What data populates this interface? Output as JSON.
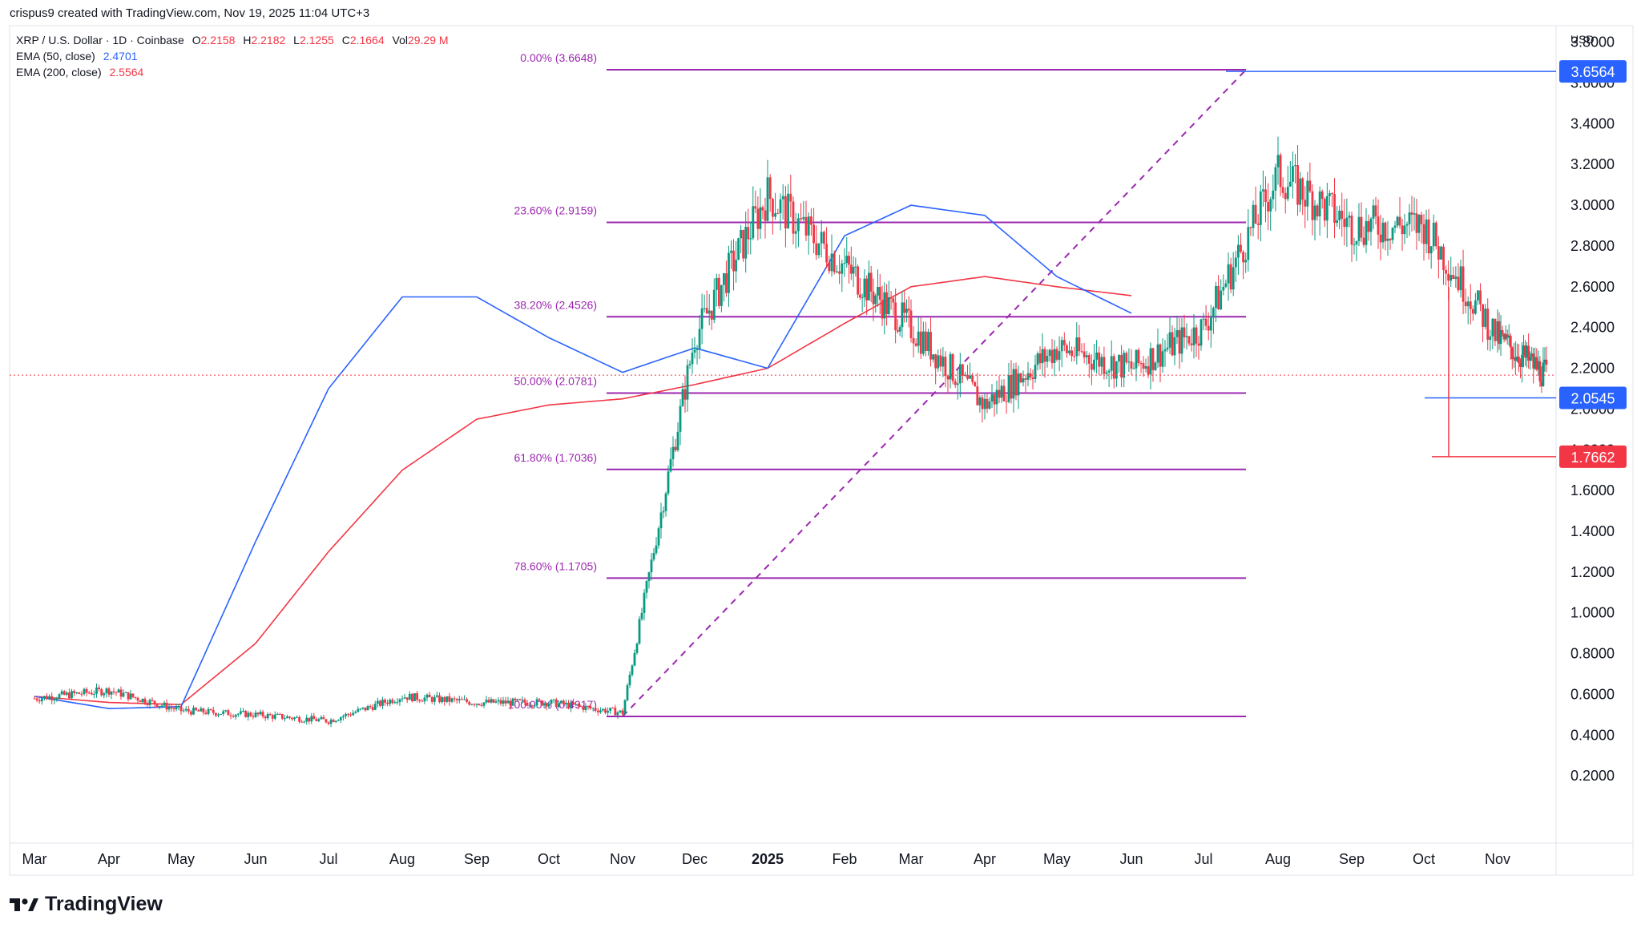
{
  "header": {
    "attribution": "crispus9 created with TradingView.com, Nov 19, 2025 11:04 UTC+3"
  },
  "legend": {
    "symbol": "XRP / U.S. Dollar · 1D · Coinbase",
    "ohlc": {
      "o_label": "O",
      "o": "2.2158",
      "h_label": "H",
      "h": "2.2182",
      "l_label": "L",
      "l": "2.1255",
      "c_label": "C",
      "c": "2.1664",
      "vol_label": "Vol",
      "vol": "29.29 M"
    },
    "ema50_label": "EMA (50, close)",
    "ema50_value": "2.4701",
    "ema200_label": "EMA (200, close)",
    "ema200_value": "2.5564"
  },
  "currency": "USD",
  "footer": {
    "brand": "TradingView"
  },
  "colors": {
    "up": "#089981",
    "down": "#f23645",
    "ema50": "#2962ff",
    "ema200": "#f23645",
    "fib": "#9c27b0",
    "tag_blue": "#2962ff",
    "tag_red": "#f23645"
  },
  "chart_data": {
    "type": "candlestick",
    "symbol": "XRP / U.S. Dollar",
    "interval": "1D",
    "exchange": "Coinbase",
    "ylim": [
      0.0,
      3.95
    ],
    "y_ticks": [
      "0.2000",
      "0.4000",
      "0.6000",
      "0.8000",
      "1.0000",
      "1.2000",
      "1.4000",
      "1.6000",
      "1.8000",
      "2.0000",
      "2.2000",
      "2.4000",
      "2.6000",
      "2.8000",
      "3.0000",
      "3.2000",
      "3.4000",
      "3.6000",
      "3.8000"
    ],
    "x_ticks": [
      "Mar",
      "Apr",
      "May",
      "Jun",
      "Jul",
      "Aug",
      "Sep",
      "Oct",
      "Nov",
      "Dec",
      "2025",
      "Feb",
      "Mar",
      "Apr",
      "May",
      "Jun",
      "Jul",
      "Aug",
      "Sep",
      "Oct",
      "Nov"
    ],
    "price_path": [
      [
        "Mar",
        0.58
      ],
      [
        "Apr",
        0.62
      ],
      [
        "May",
        0.52
      ],
      [
        "Jun",
        0.5
      ],
      [
        "Jul",
        0.47
      ],
      [
        "Aug",
        0.59
      ],
      [
        "Sep",
        0.56
      ],
      [
        "Oct",
        0.56
      ],
      [
        "Nov",
        0.51
      ],
      [
        "Dec",
        2.35
      ],
      [
        "2025",
        3.05
      ],
      [
        "Feb",
        2.7
      ],
      [
        "Mar",
        2.4
      ],
      [
        "Apr",
        2.02
      ],
      [
        "May",
        2.3
      ],
      [
        "Jun",
        2.2
      ],
      [
        "Jul",
        2.4
      ],
      [
        "Aug",
        3.15
      ],
      [
        "Sep",
        2.9
      ],
      [
        "Oct",
        2.9
      ],
      [
        "Nov",
        2.35
      ],
      [
        "Nov-19",
        2.1664
      ]
    ],
    "ema50_path": [
      [
        "Mar",
        0.59
      ],
      [
        "Jul",
        0.53
      ],
      [
        "Nov",
        0.54
      ],
      [
        "Dec",
        1.35
      ],
      [
        "2025",
        2.1
      ],
      [
        "Feb",
        2.55
      ],
      [
        "Mar",
        2.55
      ],
      [
        "Apr",
        2.35
      ],
      [
        "May",
        2.18
      ],
      [
        "Jun",
        2.3
      ],
      [
        "Jul",
        2.2
      ],
      [
        "Aug",
        2.85
      ],
      [
        "Sep",
        3.0
      ],
      [
        "Oct",
        2.95
      ],
      [
        "Nov",
        2.65
      ],
      [
        "Nov-19",
        2.4701
      ]
    ],
    "ema200_path": [
      [
        "Mar",
        0.59
      ],
      [
        "Jul",
        0.56
      ],
      [
        "Nov",
        0.55
      ],
      [
        "Dec",
        0.85
      ],
      [
        "2025",
        1.3
      ],
      [
        "Feb",
        1.7
      ],
      [
        "Mar",
        1.95
      ],
      [
        "Apr",
        2.02
      ],
      [
        "May",
        2.05
      ],
      [
        "Jun",
        2.12
      ],
      [
        "Jul",
        2.2
      ],
      [
        "Aug",
        2.42
      ],
      [
        "Sep",
        2.6
      ],
      [
        "Oct",
        2.65
      ],
      [
        "Nov",
        2.6
      ],
      [
        "Nov-19",
        2.5564
      ]
    ],
    "fibonacci": [
      {
        "label": "0.00% (3.6648)",
        "value": 3.6648
      },
      {
        "label": "23.60% (2.9159)",
        "value": 2.9159
      },
      {
        "label": "38.20% (2.4526)",
        "value": 2.4526
      },
      {
        "label": "50.00% (2.0781)",
        "value": 2.0781
      },
      {
        "label": "61.80% (1.7036)",
        "value": 1.7036
      },
      {
        "label": "78.60% (1.1705)",
        "value": 1.1705
      },
      {
        "label": "100.00% (0.4917)",
        "value": 0.4917
      }
    ],
    "price_tags": [
      {
        "label": "3.6564",
        "value": 3.6564,
        "color": "blue"
      },
      {
        "label": "2.0545",
        "value": 2.0545,
        "color": "blue"
      },
      {
        "label": "1.7662",
        "value": 1.7662,
        "color": "red"
      }
    ],
    "last_price": 2.1664
  }
}
